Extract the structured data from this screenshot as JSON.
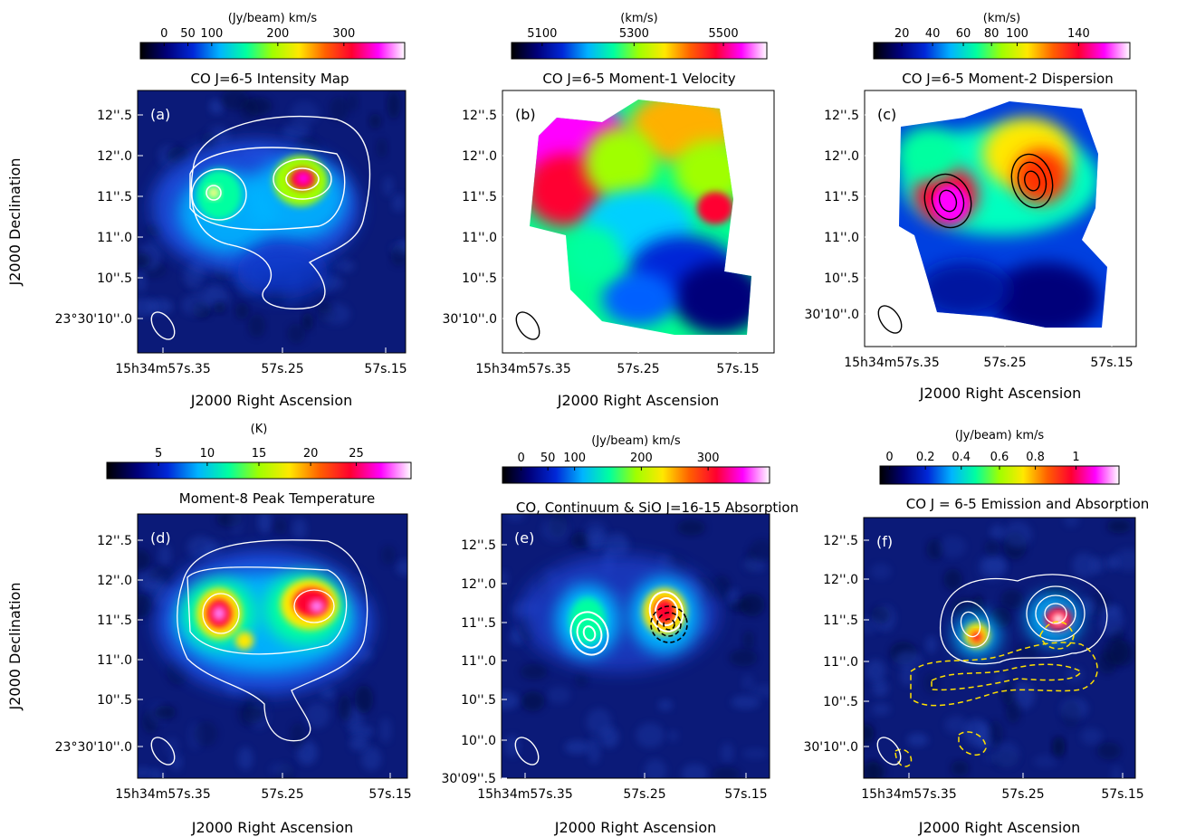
{
  "figure": {
    "colors": {
      "colormap": [
        "#000000",
        "#00007a",
        "#0028d8",
        "#00b4ff",
        "#00ffa0",
        "#a0ff00",
        "#ffe800",
        "#ff6000",
        "#ff0030",
        "#ff00ff",
        "#ffffff"
      ],
      "contour_white": "#ffffff",
      "contour_black": "#000000",
      "contour_yellow": "#ffe000",
      "background_blue": "#0b1a78"
    },
    "panels": [
      {
        "id": "a",
        "letter": "(a)",
        "title": "CO J=6-5 Intensity Map",
        "colorbar_unit": "(Jy/beam) km/s",
        "colorbar_ticks": [
          "0",
          "50",
          "100",
          "200",
          "300"
        ],
        "y_ticks": [
          "12''.5",
          "12''.0",
          "11''.5",
          "11''.0",
          "10''.5",
          "23°30'10''.0"
        ],
        "x_ticks": [
          "15h34m57s.35",
          "57s.25",
          "57s.15"
        ],
        "xlabel": "J2000 Right Ascension",
        "ylabel": "J2000 Declination"
      },
      {
        "id": "b",
        "letter": "(b)",
        "title": "CO J=6-5 Moment-1 Velocity",
        "colorbar_unit": "(km/s)",
        "colorbar_ticks": [
          "5100",
          "5300",
          "5500"
        ],
        "y_ticks": [
          "12''.5",
          "12''.0",
          "11''.5",
          "11''.0",
          "10''.5",
          "30'10''.0"
        ],
        "x_ticks": [
          "15h34m57s.35",
          "57s.25",
          "57s.15"
        ],
        "xlabel": "J2000 Right Ascension"
      },
      {
        "id": "c",
        "letter": "(c)",
        "title": "CO J=6-5 Moment-2 Dispersion",
        "colorbar_unit": "(km/s)",
        "colorbar_ticks": [
          "20",
          "40",
          "60",
          "80",
          "100",
          "140"
        ],
        "y_ticks": [
          "12''.5",
          "12''.0",
          "11''.5",
          "11''.0",
          "10''.5",
          "30'10''.0"
        ],
        "x_ticks": [
          "15h34m57s.35",
          "57s.25",
          "57s.15"
        ],
        "xlabel": "J2000 Right Ascension"
      },
      {
        "id": "d",
        "letter": "(d)",
        "title": "Moment-8 Peak Temperature",
        "colorbar_unit": "(K)",
        "colorbar_ticks": [
          "5",
          "10",
          "15",
          "20",
          "25"
        ],
        "y_ticks": [
          "12''.5",
          "12''.0",
          "11''.5",
          "11''.0",
          "10''.5",
          "23°30'10''.0"
        ],
        "x_ticks": [
          "15h34m57s.35",
          "57s.25",
          "57s.15"
        ],
        "xlabel": "J2000 Right Ascension",
        "ylabel": "J2000 Declination"
      },
      {
        "id": "e",
        "letter": "(e)",
        "title": "CO, Continuum & SiO J=16-15 Absorption",
        "colorbar_unit": "(Jy/beam) km/s",
        "colorbar_ticks": [
          "0",
          "50",
          "100",
          "200",
          "300"
        ],
        "y_ticks": [
          "12''.5",
          "12''.0",
          "11''.5",
          "11''.0",
          "10''.5",
          "10''.0",
          "30'09''.5"
        ],
        "x_ticks": [
          "15h34m57s.35",
          "57s.25",
          "57s.15"
        ],
        "xlabel": "J2000 Right Ascension"
      },
      {
        "id": "f",
        "letter": "(f)",
        "title": "CO J = 6-5 Emission and Absorption",
        "colorbar_unit": "(Jy/beam) km/s",
        "colorbar_ticks": [
          "0",
          "0.2",
          "0.4",
          "0.6",
          "0.8",
          "1"
        ],
        "y_ticks": [
          "12''.5",
          "12''.0",
          "11''.5",
          "11''.0",
          "10''.5",
          "30'10''.0"
        ],
        "x_ticks": [
          "15h34m57s.35",
          "57s.25",
          "57s.15"
        ],
        "xlabel": "J2000 Right Ascension"
      }
    ]
  },
  "chart_data": [
    {
      "type": "heatmap",
      "panel": "(a)",
      "title": "CO J=6-5 Intensity Map",
      "colorbar_label": "(Jy/beam) km/s",
      "colorbar_ticks": [
        0,
        50,
        100,
        200,
        300
      ],
      "xlabel": "J2000 Right Ascension",
      "ylabel": "J2000 Declination",
      "x_ticks": [
        "15h34m57s.35",
        "57s.25",
        "57s.15"
      ],
      "y_ticks": [
        "12''.5",
        "12''.0",
        "11''.5",
        "11''.0",
        "10''.5",
        "23°30'10''.0"
      ],
      "contours": "white"
    },
    {
      "type": "heatmap",
      "panel": "(b)",
      "title": "CO J=6-5 Moment-1 Velocity",
      "colorbar_label": "(km/s)",
      "colorbar_ticks": [
        5100,
        5300,
        5500
      ],
      "xlabel": "J2000 Right Ascension",
      "x_ticks": [
        "15h34m57s.35",
        "57s.25",
        "57s.15"
      ],
      "y_ticks": [
        "12''.5",
        "12''.0",
        "11''.5",
        "11''.0",
        "10''.5",
        "30'10''.0"
      ]
    },
    {
      "type": "heatmap",
      "panel": "(c)",
      "title": "CO J=6-5 Moment-2 Dispersion",
      "colorbar_label": "(km/s)",
      "colorbar_ticks": [
        20,
        40,
        60,
        80,
        100,
        140
      ],
      "xlabel": "J2000 Right Ascension",
      "x_ticks": [
        "15h34m57s.35",
        "57s.25",
        "57s.15"
      ],
      "y_ticks": [
        "12''.5",
        "12''.0",
        "11''.5",
        "11''.0",
        "10''.5",
        "30'10''.0"
      ],
      "contours": "black"
    },
    {
      "type": "heatmap",
      "panel": "(d)",
      "title": "Moment-8 Peak Temperature",
      "colorbar_label": "(K)",
      "colorbar_ticks": [
        5,
        10,
        15,
        20,
        25
      ],
      "xlabel": "J2000 Right Ascension",
      "ylabel": "J2000 Declination",
      "x_ticks": [
        "15h34m57s.35",
        "57s.25",
        "57s.15"
      ],
      "y_ticks": [
        "12''.5",
        "12''.0",
        "11''.5",
        "11''.0",
        "10''.5",
        "23°30'10''.0"
      ],
      "contours": "white"
    },
    {
      "type": "heatmap",
      "panel": "(e)",
      "title": "CO, Continuum & SiO J=16-15 Absorption",
      "colorbar_label": "(Jy/beam) km/s",
      "colorbar_ticks": [
        0,
        50,
        100,
        200,
        300
      ],
      "xlabel": "J2000 Right Ascension",
      "x_ticks": [
        "15h34m57s.35",
        "57s.25",
        "57s.15"
      ],
      "y_ticks": [
        "12''.5",
        "12''.0",
        "11''.5",
        "11''.0",
        "10''.5",
        "10''.0",
        "30'09''.5"
      ],
      "contours": "white solid and black dashed"
    },
    {
      "type": "heatmap",
      "panel": "(f)",
      "title": "CO J = 6-5 Emission and Absorption",
      "colorbar_label": "(Jy/beam) km/s",
      "colorbar_ticks": [
        0,
        0.2,
        0.4,
        0.6,
        0.8,
        1
      ],
      "xlabel": "J2000 Right Ascension",
      "x_ticks": [
        "15h34m57s.35",
        "57s.25",
        "57s.15"
      ],
      "y_ticks": [
        "12''.5",
        "12''.0",
        "11''.5",
        "11''.0",
        "10''.5",
        "30'10''.0"
      ],
      "contours": "white solid and yellow dashed"
    }
  ]
}
